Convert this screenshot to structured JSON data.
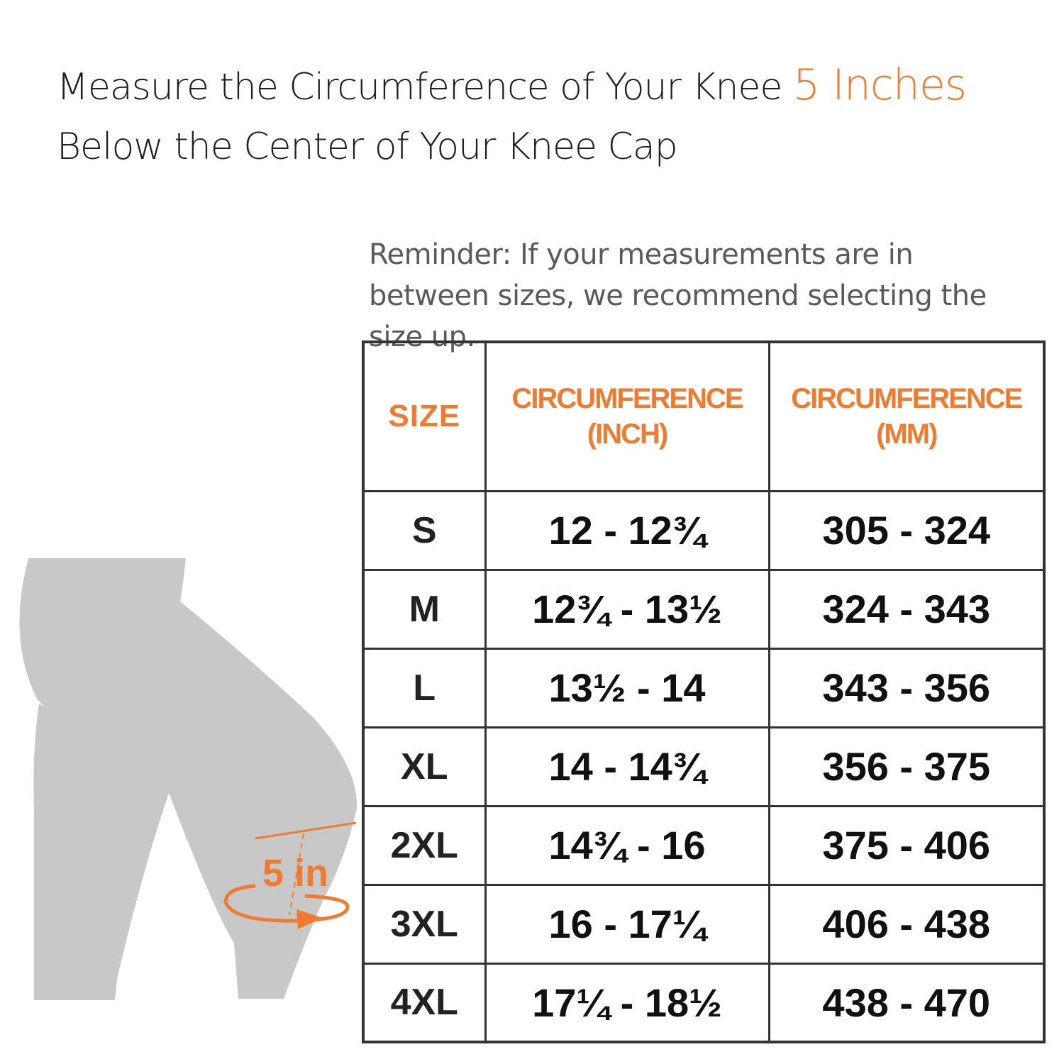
{
  "headline": {
    "part1": "Measure the Circumference of Your Knee ",
    "highlight": "5 Inches",
    "part2": " Below the Center of Your Knee Cap"
  },
  "reminder": "Reminder: If your measurements are in between sizes, we recommend selecting the size up.",
  "illustration": {
    "label": "5 in",
    "leg_color": "#c8c8c9",
    "accent_color": "#ee7b30"
  },
  "table": {
    "headers": {
      "size": "SIZE",
      "inch_line1": "CIRCUMFERENCE",
      "inch_line2": "(INCH)",
      "mm_line1": "CIRCUMFERENCE",
      "mm_line2": "(MM)"
    },
    "rows": [
      {
        "size": "S",
        "inch": "12 - 12¾",
        "mm": "305 - 324"
      },
      {
        "size": "M",
        "inch": "12¾ - 13½",
        "mm": "324 - 343"
      },
      {
        "size": "L",
        "inch": "13½ - 14",
        "mm": "343 - 356"
      },
      {
        "size": "XL",
        "inch": "14 - 14¾",
        "mm": "356 - 375"
      },
      {
        "size": "2XL",
        "inch": "14¾ - 16",
        "mm": "375 - 406"
      },
      {
        "size": "3XL",
        "inch": "16 - 17¼",
        "mm": "406 - 438"
      },
      {
        "size": "4XL",
        "inch": "17¼ - 18½",
        "mm": "438 - 470"
      }
    ]
  },
  "colors": {
    "accent": "#ee7b30",
    "text": "#231f20",
    "border": "#333333"
  }
}
